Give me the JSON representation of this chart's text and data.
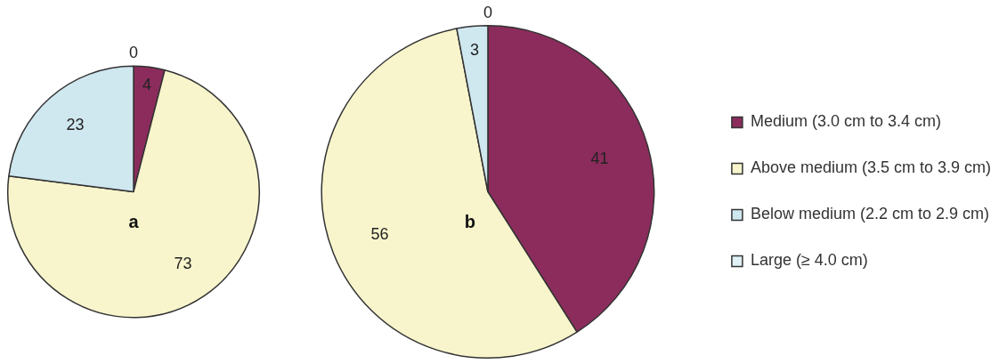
{
  "chart_data": [
    {
      "type": "pie",
      "categories": [
        null,
        null,
        null,
        null
      ],
      "values": [
        4,
        73,
        23,
        0
      ],
      "colors": [
        "#8b2c5c",
        "#f8f5cc",
        "#cfe7ef",
        "#dff1f4"
      ],
      "value_labels": [
        "4",
        "73",
        "23",
        "0"
      ],
      "annotations": [
        "a"
      ],
      "legend": false
    },
    {
      "type": "pie",
      "categories": [
        "Medium (3.0 cm to 3.4 cm)",
        "Above medium (3.5 cm to 3.9 cm)",
        "Below medium (2.2 cm to 2.9 cm)",
        "Large (≥ 4.0 cm)"
      ],
      "values": [
        41,
        56,
        3,
        0
      ],
      "colors": [
        "#8b2c5c",
        "#f8f5cc",
        "#cfe7ef",
        "#dff1f4"
      ],
      "value_labels": [
        "41",
        "56",
        "3",
        "0"
      ],
      "annotations": [
        "b"
      ],
      "legend": "right"
    }
  ]
}
